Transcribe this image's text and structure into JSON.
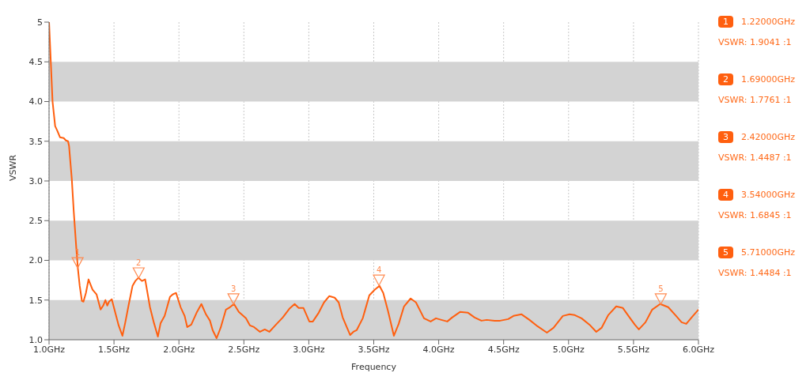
{
  "chart_data": {
    "type": "line",
    "xlabel": "Frequency",
    "ylabel": "VSWR",
    "xlim": [
      1,
      6
    ],
    "ylim": [
      1,
      5
    ],
    "xticks": [
      {
        "value": 1,
        "label": "1.0GHz"
      },
      {
        "value": 1.5,
        "label": "1.5GHz"
      },
      {
        "value": 2,
        "label": "2.0GHz"
      },
      {
        "value": 2.5,
        "label": "2.5GHz"
      },
      {
        "value": 3,
        "label": "3.0GHz"
      },
      {
        "value": 3.5,
        "label": "3.5GHz"
      },
      {
        "value": 4,
        "label": "4.0GHz"
      },
      {
        "value": 4.5,
        "label": "4.5GHz"
      },
      {
        "value": 5,
        "label": "5.0GHz"
      },
      {
        "value": 5.5,
        "label": "5.5GHz"
      },
      {
        "value": 6,
        "label": "6.0GHz"
      }
    ],
    "yticks": [
      {
        "value": 1,
        "label": "1.0"
      },
      1.5,
      {
        "value": 2,
        "label": "2.0"
      },
      2.5,
      {
        "value": 3,
        "label": "3.0"
      },
      3.5,
      {
        "value": 4,
        "label": "4.0"
      },
      4.5,
      5
    ],
    "grid": "x",
    "bands": [
      {
        "axis": "y",
        "from": 1,
        "to": 1.5,
        "color": "#d3d3d3"
      },
      {
        "axis": "y",
        "from": 2,
        "to": 2.5,
        "color": "#d3d3d3"
      },
      {
        "axis": "y",
        "from": 3,
        "to": 3.5,
        "color": "#d3d3d3"
      },
      {
        "axis": "y",
        "from": 4,
        "to": 4.5,
        "color": "#d3d3d3"
      }
    ],
    "series": [
      {
        "color": "#ff5f0f",
        "x": [
          1.0,
          1.027,
          1.047,
          1.064,
          1.084,
          1.113,
          1.13,
          1.146,
          1.154,
          1.175,
          1.19,
          1.21,
          1.222,
          1.236,
          1.253,
          1.265,
          1.284,
          1.304,
          1.318,
          1.335,
          1.366,
          1.397,
          1.417,
          1.434,
          1.448,
          1.462,
          1.483,
          1.51,
          1.536,
          1.565,
          1.586,
          1.612,
          1.643,
          1.664,
          1.688,
          1.715,
          1.74,
          1.777,
          1.808,
          1.838,
          1.859,
          1.89,
          1.931,
          1.951,
          1.978,
          2.013,
          2.044,
          2.064,
          2.095,
          2.136,
          2.173,
          2.208,
          2.239,
          2.26,
          2.29,
          2.321,
          2.362,
          2.393,
          2.424,
          2.461,
          2.516,
          2.547,
          2.578,
          2.624,
          2.661,
          2.696,
          2.747,
          2.799,
          2.85,
          2.891,
          2.922,
          2.959,
          3.004,
          3.031,
          3.076,
          3.117,
          3.158,
          3.199,
          3.23,
          3.261,
          3.292,
          3.318,
          3.343,
          3.368,
          3.415,
          3.466,
          3.507,
          3.544,
          3.573,
          3.61,
          3.655,
          3.692,
          3.733,
          3.784,
          3.825,
          3.887,
          3.938,
          3.979,
          4.021,
          4.066,
          4.103,
          4.164,
          4.226,
          4.277,
          4.329,
          4.37,
          4.431,
          4.473,
          4.535,
          4.576,
          4.638,
          4.699,
          4.761,
          4.833,
          4.884,
          4.956,
          5.007,
          5.048,
          5.1,
          5.161,
          5.213,
          5.254,
          5.305,
          5.367,
          5.418,
          5.47,
          5.51,
          5.541,
          5.592,
          5.644,
          5.705,
          5.767,
          5.828,
          5.87,
          5.906,
          5.952,
          6.0
        ],
        "values": [
          5.0,
          4.0,
          3.69,
          3.63,
          3.55,
          3.54,
          3.51,
          3.5,
          3.44,
          3.03,
          2.62,
          2.15,
          1.9,
          1.68,
          1.49,
          1.48,
          1.59,
          1.76,
          1.7,
          1.63,
          1.57,
          1.38,
          1.43,
          1.5,
          1.43,
          1.48,
          1.51,
          1.34,
          1.18,
          1.05,
          1.21,
          1.43,
          1.68,
          1.74,
          1.78,
          1.74,
          1.76,
          1.41,
          1.21,
          1.04,
          1.21,
          1.3,
          1.54,
          1.57,
          1.59,
          1.41,
          1.3,
          1.16,
          1.19,
          1.34,
          1.45,
          1.32,
          1.24,
          1.12,
          1.02,
          1.15,
          1.38,
          1.41,
          1.45,
          1.35,
          1.27,
          1.18,
          1.16,
          1.1,
          1.13,
          1.1,
          1.19,
          1.28,
          1.39,
          1.45,
          1.4,
          1.4,
          1.23,
          1.23,
          1.34,
          1.47,
          1.55,
          1.53,
          1.47,
          1.28,
          1.16,
          1.06,
          1.1,
          1.12,
          1.27,
          1.56,
          1.63,
          1.68,
          1.59,
          1.36,
          1.05,
          1.2,
          1.42,
          1.52,
          1.47,
          1.27,
          1.23,
          1.27,
          1.25,
          1.23,
          1.28,
          1.35,
          1.34,
          1.28,
          1.24,
          1.25,
          1.24,
          1.24,
          1.26,
          1.3,
          1.32,
          1.25,
          1.17,
          1.09,
          1.15,
          1.3,
          1.32,
          1.31,
          1.27,
          1.19,
          1.1,
          1.15,
          1.31,
          1.42,
          1.4,
          1.28,
          1.19,
          1.13,
          1.22,
          1.38,
          1.45,
          1.41,
          1.3,
          1.22,
          1.2,
          1.29,
          1.38
        ]
      }
    ],
    "annotations": [
      {
        "text": "1",
        "x": 1.22,
        "y": 1.9041
      },
      {
        "text": "2",
        "x": 1.69,
        "y": 1.7761
      },
      {
        "text": "3",
        "x": 2.42,
        "y": 1.4487
      },
      {
        "text": "4",
        "x": 3.54,
        "y": 1.6845
      },
      {
        "text": "5",
        "x": 5.71,
        "y": 1.4484
      },
      "1.22000GHz",
      "VSWR: 1.9041 :1",
      "1.69000GHz",
      "VSWR: 1.7761 :1",
      "2.42000GHz",
      "VSWR: 1.4487 :1",
      "3.54000GHz",
      "VSWR: 1.6845 :1",
      "5.71000GHz",
      "VSWR: 1.4484 :1"
    ]
  }
}
